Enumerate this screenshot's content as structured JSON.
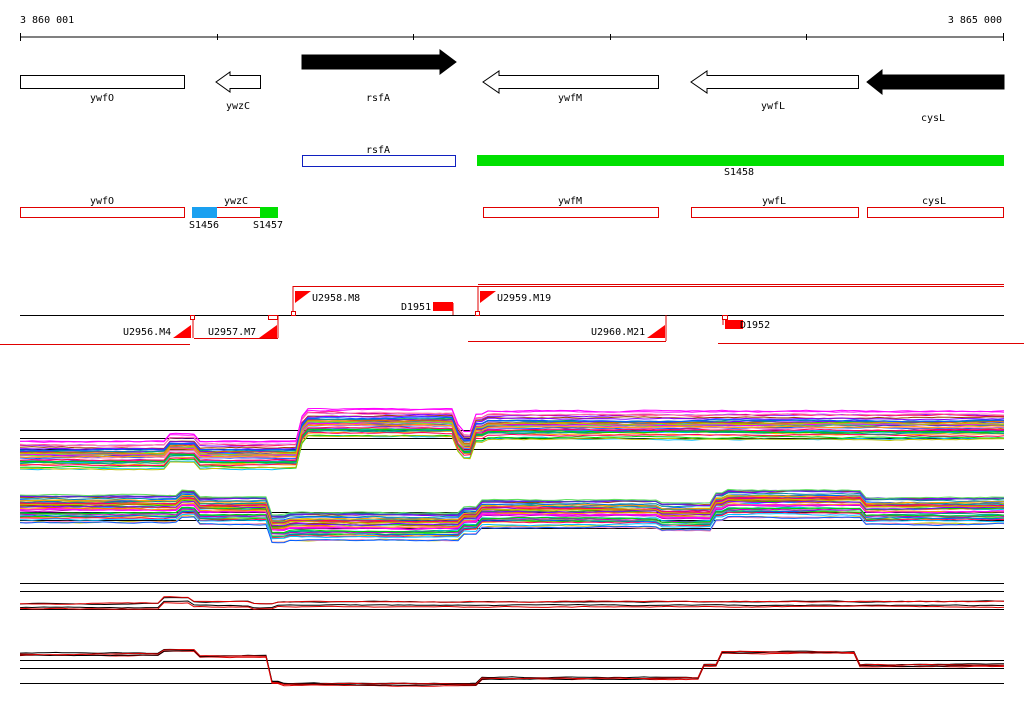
{
  "ruler": {
    "start_label": "3 860 001",
    "end_label": "3 865 000"
  },
  "genes": {
    "ywfO": "ywfO",
    "ywzC": "ywzC",
    "rsfA": "rsfA",
    "ywfM": "ywfM",
    "ywfL": "ywfL",
    "cysL": "cysL"
  },
  "features": {
    "rsfA": "rsfA",
    "S1458": "S1458",
    "S1456": "S1456",
    "S1457": "S1457",
    "ywfO": "ywfO",
    "ywzC": "ywzC",
    "ywfM": "ywfM",
    "ywfL": "ywfL",
    "cysL": "cysL"
  },
  "markers": {
    "U2958": "U2958.M8",
    "D1951": "D1951",
    "U2959": "U2959.M19",
    "U2956": "U2956.M4",
    "U2957": "U2957.M7",
    "U2960": "U2960.M21",
    "D1952": "D1952"
  },
  "colors": {
    "feature_outline": "#e00000",
    "rsfA_outline": "#1020c0",
    "S1458": "#00e000",
    "S1456": "#1aa0f0",
    "S1457": "#00e000",
    "marker": "#ff0000"
  }
}
